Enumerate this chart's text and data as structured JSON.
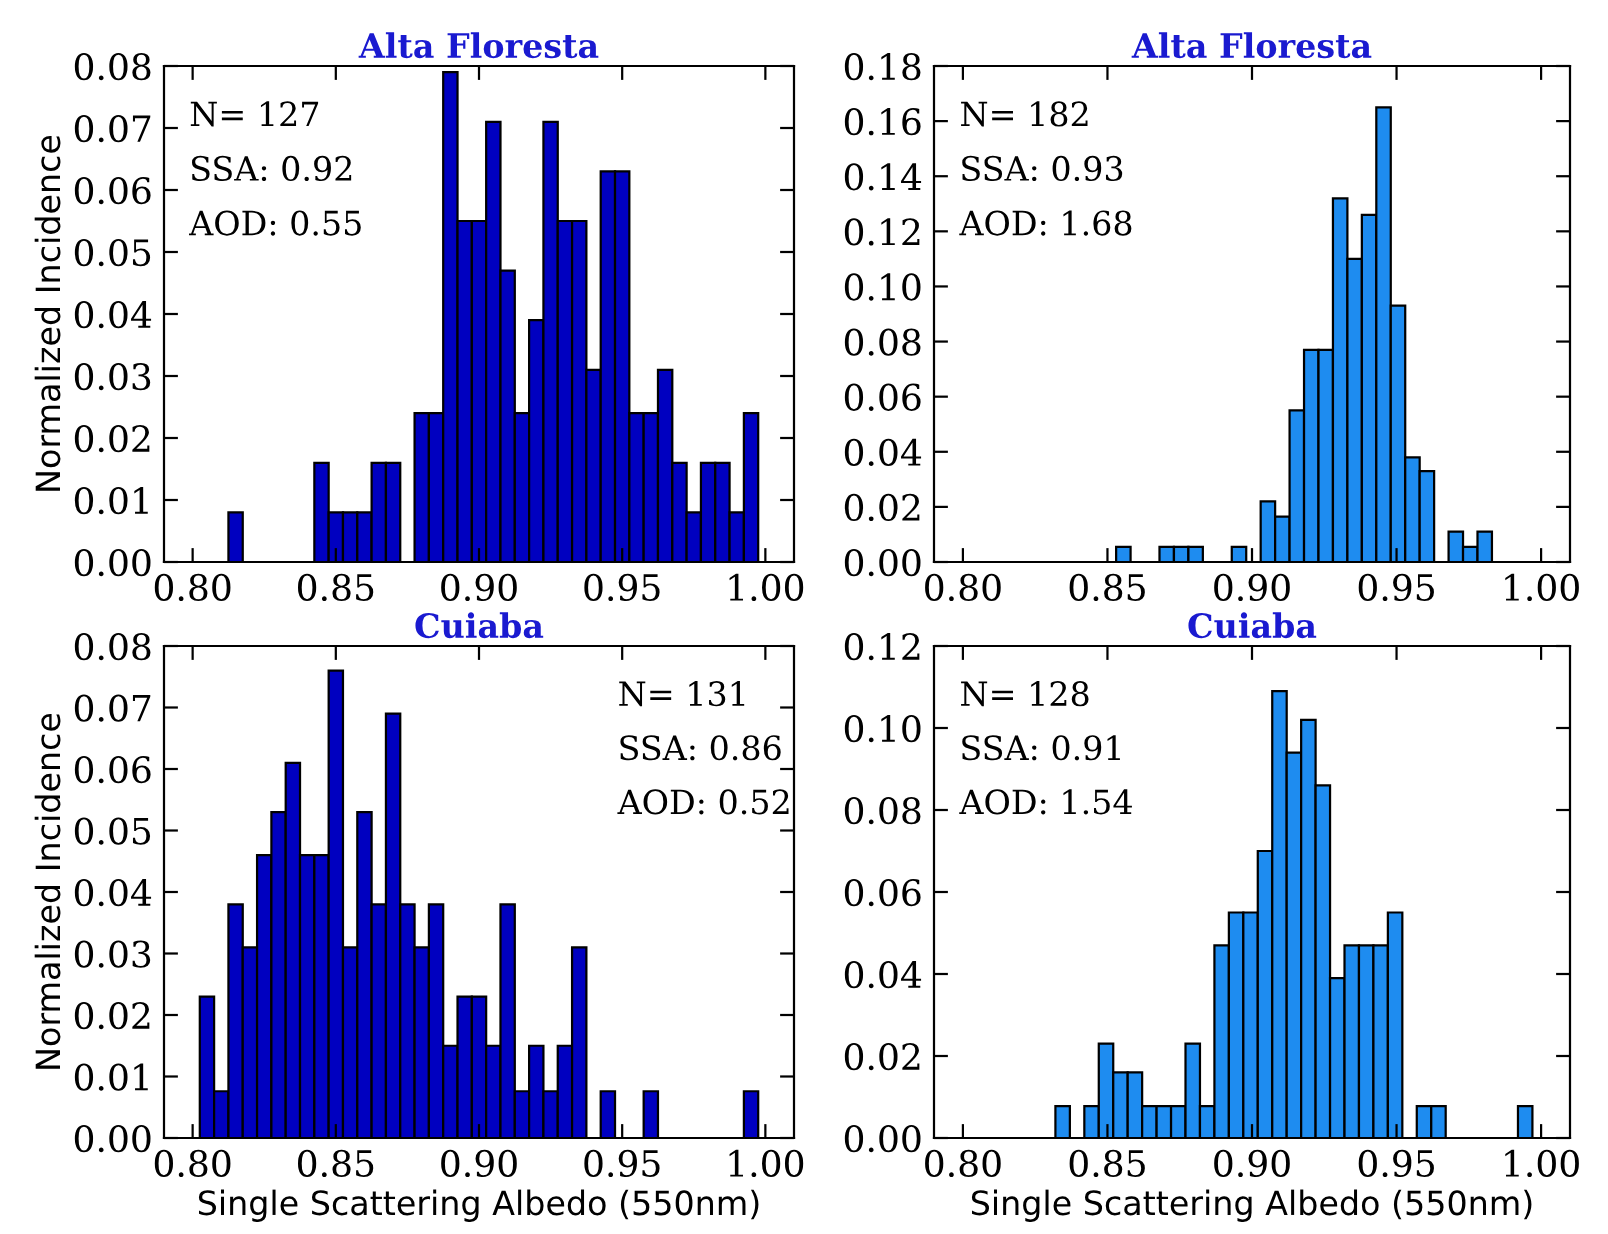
{
  "chart_data": [
    {
      "type": "histogram",
      "title": "Alta Floresta",
      "ylabel": "Normalized Incidence",
      "annotations": [
        "N= 127",
        "SSA: 0.92",
        "AOD: 0.55"
      ],
      "color": "#0000c0",
      "grid": false,
      "bins": [
        0.8125,
        0.8175,
        0.8225,
        0.8275,
        0.8325,
        0.8375,
        0.8425,
        0.8475,
        0.8525,
        0.8575,
        0.8625,
        0.8675,
        0.8725,
        0.8775,
        0.8825,
        0.8875,
        0.8925,
        0.8975,
        0.9025,
        0.9075,
        0.9125,
        0.9175,
        0.9225,
        0.9275,
        0.9325,
        0.9375,
        0.9425,
        0.9475,
        0.9525,
        0.9575,
        0.9625,
        0.9675,
        0.9725,
        0.9775,
        0.9825,
        0.9875,
        0.9925,
        0.9975
      ],
      "values": [
        0.008,
        0,
        0,
        0,
        0,
        0,
        0.016,
        0.008,
        0.008,
        0.008,
        0.016,
        0.016,
        0,
        0.024,
        0.024,
        0.079,
        0.055,
        0.055,
        0.071,
        0.047,
        0.024,
        0.039,
        0.071,
        0.055,
        0.055,
        0.031,
        0.063,
        0.063,
        0.024,
        0.024,
        0.031,
        0.016,
        0.008,
        0.016,
        0.016,
        0.008,
        0.024
      ],
      "xlim": [
        0.79,
        1.01
      ],
      "xticks": [
        {
          "value": 0.8,
          "label": "0.80"
        },
        {
          "value": 0.85,
          "label": "0.85"
        },
        {
          "value": 0.9,
          "label": "0.90"
        },
        {
          "value": 0.95,
          "label": "0.95"
        },
        {
          "value": 1.0,
          "label": "1.00"
        }
      ],
      "ylim": [
        0,
        0.08
      ],
      "yticks": [
        {
          "value": 0,
          "label": "0.00"
        },
        {
          "value": 0.01,
          "label": "0.01"
        },
        {
          "value": 0.02,
          "label": "0.02"
        },
        {
          "value": 0.03,
          "label": "0.03"
        },
        {
          "value": 0.04,
          "label": "0.04"
        },
        {
          "value": 0.05,
          "label": "0.05"
        },
        {
          "value": 0.06,
          "label": "0.06"
        },
        {
          "value": 0.07,
          "label": "0.07"
        },
        {
          "value": 0.08,
          "label": "0.08"
        }
      ]
    },
    {
      "type": "histogram",
      "title": "Alta Floresta",
      "annotations": [
        "N= 182",
        "SSA: 0.93",
        "AOD: 1.68"
      ],
      "color": "#1e8cf0",
      "grid": false,
      "bins": [
        0.853,
        0.858,
        0.863,
        0.868,
        0.873,
        0.878,
        0.883,
        0.888,
        0.893,
        0.898,
        0.903,
        0.908,
        0.913,
        0.918,
        0.923,
        0.928,
        0.933,
        0.938,
        0.943,
        0.948,
        0.953,
        0.958,
        0.963,
        0.968,
        0.973,
        0.978,
        0.983
      ],
      "values": [
        0.0055,
        0,
        0,
        0.0055,
        0.0055,
        0.0055,
        0,
        0,
        0.0055,
        0,
        0.022,
        0.0165,
        0.055,
        0.077,
        0.077,
        0.132,
        0.11,
        0.126,
        0.165,
        0.093,
        0.038,
        0.033,
        0,
        0.011,
        0.0055,
        0.011
      ],
      "xlim": [
        0.79,
        1.01
      ],
      "xticks": [
        {
          "value": 0.8,
          "label": "0.80"
        },
        {
          "value": 0.85,
          "label": "0.85"
        },
        {
          "value": 0.9,
          "label": "0.90"
        },
        {
          "value": 0.95,
          "label": "0.95"
        },
        {
          "value": 1.0,
          "label": "1.00"
        }
      ],
      "ylim": [
        0,
        0.18
      ],
      "yticks": [
        {
          "value": 0,
          "label": "0.00"
        },
        {
          "value": 0.02,
          "label": "0.02"
        },
        {
          "value": 0.04,
          "label": "0.04"
        },
        {
          "value": 0.06,
          "label": "0.06"
        },
        {
          "value": 0.08,
          "label": "0.08"
        },
        {
          "value": 0.1,
          "label": "0.10"
        },
        {
          "value": 0.12,
          "label": "0.12"
        },
        {
          "value": 0.14,
          "label": "0.14"
        },
        {
          "value": 0.16,
          "label": "0.16"
        },
        {
          "value": 0.18,
          "label": "0.18"
        }
      ]
    },
    {
      "type": "histogram",
      "title": "Cuiaba",
      "xlabel": "Single Scattering Albedo (550nm)",
      "ylabel": "Normalized Incidence",
      "annotations": [
        "N= 131",
        "SSA: 0.86",
        "AOD: 0.52"
      ],
      "color": "#0000c0",
      "grid": false,
      "bins": [
        0.8025,
        0.8075,
        0.8125,
        0.8175,
        0.8225,
        0.8275,
        0.8325,
        0.8375,
        0.8425,
        0.8475,
        0.8525,
        0.8575,
        0.8625,
        0.8675,
        0.8725,
        0.8775,
        0.8825,
        0.8875,
        0.8925,
        0.8975,
        0.9025,
        0.9075,
        0.9125,
        0.9175,
        0.9225,
        0.9275,
        0.9325,
        0.9375,
        0.9425,
        0.9475,
        0.9525,
        0.9575,
        0.9625,
        0.9675,
        0.9725,
        0.9775,
        0.9825,
        0.9875,
        0.9925,
        0.9975
      ],
      "values": [
        0.023,
        0.0076,
        0.038,
        0.031,
        0.046,
        0.053,
        0.061,
        0.046,
        0.046,
        0.076,
        0.031,
        0.053,
        0.038,
        0.069,
        0.038,
        0.031,
        0.038,
        0.015,
        0.023,
        0.023,
        0.015,
        0.038,
        0.0076,
        0.015,
        0.0076,
        0.015,
        0.031,
        0,
        0.0076,
        0,
        0,
        0.0076,
        0,
        0,
        0,
        0,
        0,
        0,
        0.0076
      ],
      "xlim": [
        0.79,
        1.01
      ],
      "xticks": [
        {
          "value": 0.8,
          "label": "0.80"
        },
        {
          "value": 0.85,
          "label": "0.85"
        },
        {
          "value": 0.9,
          "label": "0.90"
        },
        {
          "value": 0.95,
          "label": "0.95"
        },
        {
          "value": 1.0,
          "label": "1.00"
        }
      ],
      "ylim": [
        0,
        0.08
      ],
      "yticks": [
        {
          "value": 0,
          "label": "0.00"
        },
        {
          "value": 0.01,
          "label": "0.01"
        },
        {
          "value": 0.02,
          "label": "0.02"
        },
        {
          "value": 0.03,
          "label": "0.03"
        },
        {
          "value": 0.04,
          "label": "0.04"
        },
        {
          "value": 0.05,
          "label": "0.05"
        },
        {
          "value": 0.06,
          "label": "0.06"
        },
        {
          "value": 0.07,
          "label": "0.07"
        },
        {
          "value": 0.08,
          "label": "0.08"
        }
      ]
    },
    {
      "type": "histogram",
      "title": "Cuiaba",
      "xlabel": "Single Scattering Albedo (550nm)",
      "annotations": [
        "N= 128",
        "SSA: 0.91",
        "AOD: 1.54"
      ],
      "color": "#1e8cf0",
      "grid": false,
      "bins": [
        0.832,
        0.837,
        0.842,
        0.847,
        0.852,
        0.857,
        0.862,
        0.867,
        0.872,
        0.877,
        0.882,
        0.887,
        0.892,
        0.897,
        0.902,
        0.907,
        0.912,
        0.917,
        0.922,
        0.927,
        0.932,
        0.937,
        0.942,
        0.947,
        0.952,
        0.957,
        0.962,
        0.967,
        0.972,
        0.977,
        0.982,
        0.987,
        0.992,
        0.997
      ],
      "values": [
        0.0078,
        0,
        0.0078,
        0.023,
        0.016,
        0.016,
        0.0078,
        0.0078,
        0.0078,
        0.023,
        0.0078,
        0.047,
        0.055,
        0.055,
        0.07,
        0.109,
        0.094,
        0.102,
        0.086,
        0.039,
        0.047,
        0.047,
        0.047,
        0.055,
        0,
        0.0078,
        0.0078,
        0,
        0,
        0,
        0,
        0,
        0.0078
      ],
      "xlim": [
        0.79,
        1.01
      ],
      "xticks": [
        {
          "value": 0.8,
          "label": "0.80"
        },
        {
          "value": 0.85,
          "label": "0.85"
        },
        {
          "value": 0.9,
          "label": "0.90"
        },
        {
          "value": 0.95,
          "label": "0.95"
        },
        {
          "value": 1.0,
          "label": "1.00"
        }
      ],
      "ylim": [
        0,
        0.12
      ],
      "yticks": [
        {
          "value": 0,
          "label": "0.00"
        },
        {
          "value": 0.02,
          "label": "0.02"
        },
        {
          "value": 0.04,
          "label": "0.04"
        },
        {
          "value": 0.06,
          "label": "0.06"
        },
        {
          "value": 0.08,
          "label": "0.08"
        },
        {
          "value": 0.1,
          "label": "0.10"
        },
        {
          "value": 0.12,
          "label": "0.12"
        }
      ]
    }
  ]
}
